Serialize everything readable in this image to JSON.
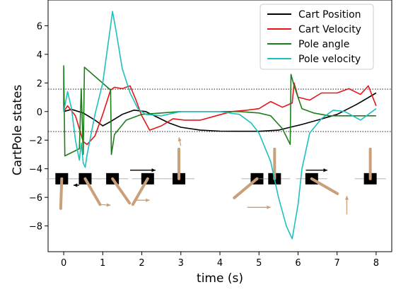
{
  "chart_data": {
    "type": "line",
    "xlabel": "time (s)",
    "ylabel": "CartPole states",
    "xlim": [
      -0.4,
      8.4
    ],
    "ylim": [
      -9.8,
      7.8
    ],
    "xticks": [
      "0",
      "1",
      "2",
      "3",
      "4",
      "5",
      "6",
      "7",
      "8"
    ],
    "yticks": [
      "6",
      "4",
      "2",
      "0",
      "−2",
      "−4",
      "−6",
      "−8"
    ],
    "threshold_lines": [
      1.57,
      -1.4
    ],
    "legend_position": "upper right",
    "grid": false,
    "series": [
      {
        "name": "Cart Position",
        "color": "#000000",
        "x": [
          0,
          0.2,
          0.5,
          0.8,
          1.0,
          1.2,
          1.5,
          1.8,
          2.1,
          2.4,
          2.7,
          3.0,
          3.5,
          4.0,
          4.5,
          5.0,
          5.5,
          5.8,
          6.1,
          6.5,
          7.0,
          7.5,
          8.0
        ],
        "y": [
          0,
          0.15,
          -0.1,
          -0.6,
          -1.0,
          -0.7,
          -0.2,
          0.1,
          0.0,
          -0.4,
          -0.8,
          -1.1,
          -1.3,
          -1.37,
          -1.38,
          -1.38,
          -1.3,
          -1.1,
          -0.9,
          -0.6,
          -0.2,
          0.5,
          1.3
        ]
      },
      {
        "name": "Cart Velocity",
        "color": "#e8141b",
        "x": [
          0,
          0.1,
          0.3,
          0.5,
          0.6,
          0.8,
          1.0,
          1.2,
          1.3,
          1.5,
          1.7,
          1.85,
          2.0,
          2.2,
          2.5,
          2.8,
          3.1,
          3.5,
          3.9,
          4.3,
          4.7,
          5.0,
          5.3,
          5.6,
          5.85,
          5.9,
          6.0,
          6.3,
          6.6,
          7.0,
          7.3,
          7.6,
          7.8,
          8.0
        ],
        "y": [
          0,
          0.4,
          -0.3,
          -2.1,
          -2.3,
          -1.7,
          -0.2,
          1.5,
          1.7,
          1.6,
          1.8,
          0.8,
          -0.3,
          -1.3,
          -1.0,
          -0.5,
          -0.6,
          -0.6,
          -0.3,
          0,
          0.1,
          0.2,
          0.7,
          0.3,
          0.6,
          2.0,
          1.0,
          0.8,
          1.3,
          1.3,
          1.6,
          1.2,
          1.8,
          0.4
        ]
      },
      {
        "name": "Pole angle",
        "color": "#1a7f1a",
        "x": [
          0,
          0,
          0.03,
          0.4,
          0.45,
          0.5,
          0.53,
          1.2,
          1.22,
          1.3,
          1.6,
          2.0,
          2.5,
          3.0,
          3.5,
          4.0,
          4.5,
          5.0,
          5.3,
          5.6,
          5.8,
          5.82,
          5.9,
          6.1,
          6.4,
          6.8,
          7.2,
          8.0
        ],
        "y": [
          0,
          3.2,
          -3.1,
          -2.6,
          1.6,
          -3.0,
          3.1,
          1.5,
          -3.0,
          -1.6,
          -0.6,
          -0.2,
          -0.1,
          0.0,
          0.0,
          0.0,
          0.0,
          -0.1,
          -0.3,
          -1.2,
          -2.3,
          2.6,
          1.8,
          0.2,
          -0.1,
          -0.3,
          -0.3,
          -0.3
        ]
      },
      {
        "name": "Pole velocity",
        "color": "#1fbfbf",
        "x": [
          0,
          0.1,
          0.2,
          0.3,
          0.4,
          0.45,
          0.5,
          0.55,
          0.6,
          0.8,
          1.0,
          1.1,
          1.2,
          1.25,
          1.35,
          1.5,
          1.7,
          1.9,
          2.1,
          2.5,
          3.0,
          3.5,
          4.0,
          4.5,
          4.8,
          5.0,
          5.3,
          5.5,
          5.7,
          5.85,
          6.0,
          6.1,
          6.3,
          6.6,
          6.9,
          7.2,
          7.6,
          8.0
        ],
        "y": [
          0,
          1.4,
          0.2,
          -2.0,
          -3.4,
          -2.2,
          -3.6,
          -3.9,
          -3.0,
          -0.2,
          2.0,
          4.0,
          6.0,
          7.0,
          5.5,
          3.0,
          1.3,
          0.2,
          -0.2,
          -0.3,
          0.0,
          0.0,
          0.0,
          -0.2,
          -0.8,
          -1.5,
          -3.5,
          -6.0,
          -8.0,
          -8.9,
          -6.5,
          -4.0,
          -1.5,
          -0.5,
          0.1,
          0.0,
          -0.6,
          0.2
        ]
      }
    ]
  }
}
